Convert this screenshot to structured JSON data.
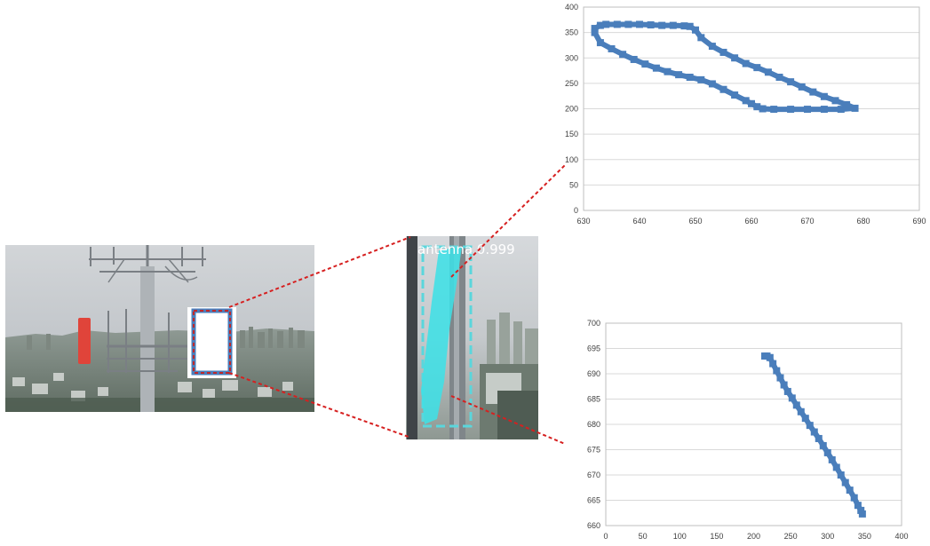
{
  "photo": {
    "detection_label": "antenna 0.999",
    "colors": {
      "sky": "#c9cdd1",
      "mask": "#3fe0e6",
      "box": "#5ad6dc",
      "zoom_line": "#d62020",
      "red_object": "#e0443a",
      "point_marker": "#4a7ebb"
    }
  },
  "chart_data": [
    {
      "type": "scatter",
      "title": "",
      "xlabel": "",
      "ylabel": "",
      "xlim": [
        630,
        690
      ],
      "ylim": [
        0,
        400
      ],
      "x_ticks": [
        630,
        640,
        650,
        660,
        670,
        680,
        690
      ],
      "y_ticks": [
        0,
        50,
        100,
        150,
        200,
        250,
        300,
        350,
        400
      ],
      "grid": "horizontal",
      "legend": "none",
      "marker_color": "#4a7ebb",
      "series": [
        {
          "x": [
            632,
            633,
            634,
            636,
            638,
            640,
            642,
            644,
            646,
            648,
            649,
            650,
            651,
            653,
            655,
            657,
            659,
            661,
            663,
            665,
            667,
            669,
            671,
            673,
            675,
            677,
            678.5,
            676,
            673,
            670,
            667,
            664,
            662,
            661,
            660,
            659,
            657,
            655,
            653,
            651,
            649,
            647,
            645,
            643,
            641,
            639,
            637,
            635,
            633,
            632
          ],
          "y": [
            358,
            364,
            366,
            366,
            366,
            366,
            365,
            364,
            364,
            363,
            362,
            355,
            340,
            323,
            311,
            300,
            289,
            281,
            272,
            262,
            253,
            243,
            233,
            224,
            216,
            208,
            201,
            199,
            199,
            199,
            199,
            199,
            200,
            204,
            210,
            216,
            227,
            238,
            249,
            257,
            262,
            267,
            273,
            280,
            288,
            297,
            307,
            318,
            330,
            350
          ]
        }
      ]
    },
    {
      "type": "scatter",
      "title": "",
      "xlabel": "",
      "ylabel": "",
      "xlim": [
        0,
        400
      ],
      "ylim": [
        660,
        700
      ],
      "x_ticks": [
        0,
        50,
        100,
        150,
        200,
        250,
        300,
        350,
        400
      ],
      "y_ticks": [
        660,
        665,
        670,
        675,
        680,
        685,
        690,
        695,
        700
      ],
      "grid": "horizontal",
      "legend": "none",
      "marker_color": "#4a7ebb",
      "series": [
        {
          "x": [
            215,
            218,
            222,
            226,
            231,
            236,
            241,
            246,
            252,
            258,
            264,
            270,
            276,
            282,
            288,
            294,
            300,
            306,
            312,
            318,
            324,
            330,
            336,
            341,
            345,
            347
          ],
          "y": [
            693.5,
            693.5,
            693.2,
            692,
            690.6,
            689.2,
            687.8,
            686.5,
            685.2,
            683.8,
            682.5,
            681.2,
            679.8,
            678.5,
            677.2,
            675.8,
            674.4,
            673.0,
            671.5,
            670.0,
            668.5,
            667.0,
            665.5,
            664,
            663,
            662.3
          ]
        }
      ]
    }
  ]
}
